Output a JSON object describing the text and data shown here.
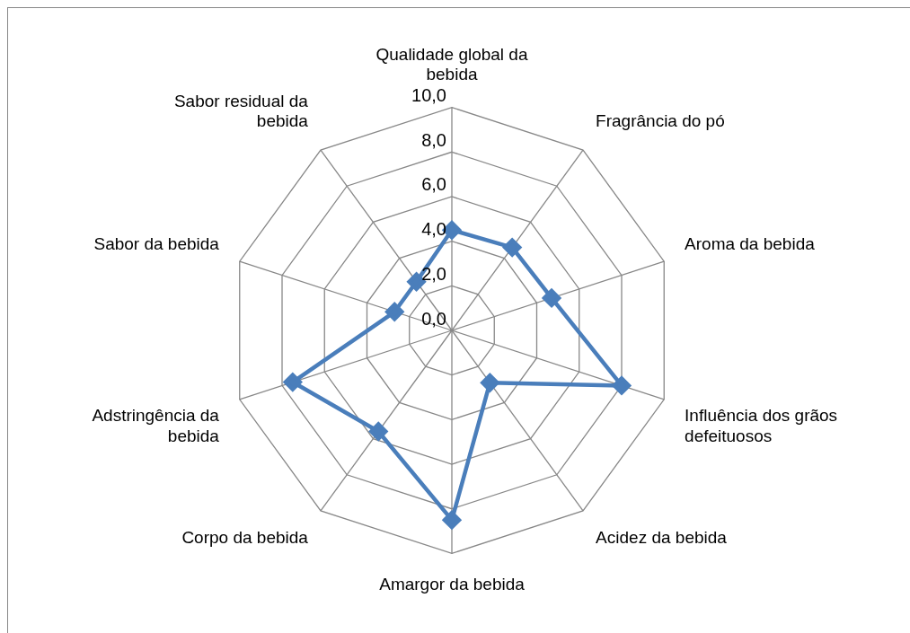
{
  "chart_data": {
    "type": "radar",
    "categories": [
      "Qualidade global da bebida",
      "Fragrância do pó",
      "Aroma da bebida",
      "Influência dos grãos defeituosos",
      "Acidez da bebida",
      "Amargor da bebida",
      "Corpo da bebida",
      "Adstringência da bebida",
      "Sabor da bebida",
      "Sabor residual da bebida"
    ],
    "series": [
      {
        "color": "#4a7ebb",
        "values": [
          4.5,
          4.6,
          4.7,
          8.0,
          2.9,
          8.5,
          5.6,
          7.5,
          2.7,
          2.7
        ]
      }
    ],
    "ylim": [
      0,
      10
    ],
    "yticks": [
      {
        "value": 0,
        "label": "0,0"
      },
      {
        "value": 2,
        "label": "2,0"
      },
      {
        "value": 4,
        "label": "4,0"
      },
      {
        "value": 6,
        "label": "6,0"
      },
      {
        "value": 8,
        "label": "8,0"
      },
      {
        "value": 10,
        "label": "10,0"
      }
    ],
    "grid": true,
    "legend": false,
    "marker": "diamond"
  }
}
